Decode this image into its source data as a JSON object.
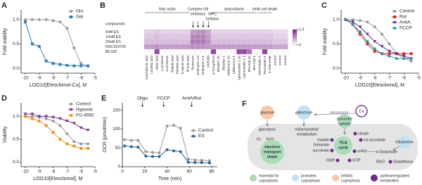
{
  "chart_data": [
    {
      "type": "line",
      "label": "A",
      "xlabel": "LOG10[Elesclomol-Cu], M",
      "ylabel": "Fold viability",
      "x": [
        -10,
        -9.5,
        -9,
        -8.5,
        -8,
        -7.5,
        -7,
        -6.5,
        -6,
        -5.5
      ],
      "xlim": [
        -10.3,
        -5
      ],
      "xticks": [
        -10,
        -9,
        -8,
        -7,
        -6,
        -5
      ],
      "ylim": [
        -0.1,
        1.2
      ],
      "yticks": [
        {
          "value": 0,
          "label": "0.0"
        },
        {
          "value": 0.5,
          "label": "0.5"
        },
        {
          "value": 1,
          "label": "1.0"
        }
      ],
      "legend": "upper right",
      "series": [
        {
          "name": "Glu",
          "color": "#9a9a9a",
          "marker": "circle",
          "values": [
            1.0,
            1.0,
            1.0,
            1.0,
            0.98,
            0.95,
            0.82,
            0.42,
            0.1,
            0.04
          ]
        },
        {
          "name": "Gal",
          "color": "#2f7fc1",
          "marker": "square",
          "values": [
            0.95,
            0.5,
            0.45,
            0.15,
            0.1,
            0.08,
            0.06,
            0.05,
            0.05,
            0.05
          ]
        }
      ]
    },
    {
      "type": "heatmap",
      "label": "B",
      "compounds_label": "compounds:",
      "groups": [
        [
          "fatty acids"
        ],
        [
          "Complex I/III",
          "inhibitors"
        ],
        [
          "MPC",
          "inhibitor"
        ],
        [
          "antioxidants"
        ],
        [
          "inhib cell death"
        ]
      ],
      "rows": [
        "5nM ES",
        "10nM ES",
        "20nM ES",
        "NSC319726",
        "ML162"
      ],
      "columns": [
        "Arachidonic acid",
        "Linoleic acid",
        "Oleic acid",
        "γ-Linolenic",
        "α-Linolenic",
        "Elaidic acid",
        "Palmitic acid",
        "α-Lipoic acid",
        "Erucic acid",
        "Rotenone",
        "Antimycin A 5",
        "Antimycin A 1",
        "UK5099",
        "α-Tocopherol",
        "Ebselen 10",
        "Ebselen 1",
        "Idebenone 10",
        "Idebenone 1",
        "Liproxstatin-1 10",
        "Liproxstatin-1 1",
        "JP4-039 10",
        "JP4-039 1",
        "Necrostatin-1",
        "Ferrostatin-1",
        "Z-VAD-FMK",
        "control",
        "control",
        "control"
      ],
      "values": [
        [
          0.2,
          0.2,
          0.25,
          0.2,
          0.2,
          0.2,
          0.2,
          0.2,
          0.2,
          0.45,
          0.5,
          0.5,
          0.4,
          0.2,
          0.2,
          0.2,
          0.2,
          0.2,
          0.2,
          0.2,
          0.2,
          0.2,
          0.2,
          0.2,
          0.2,
          0.15,
          0.15,
          0.15
        ],
        [
          0.25,
          0.25,
          0.3,
          0.25,
          0.25,
          0.25,
          0.25,
          0.25,
          0.25,
          0.55,
          0.55,
          0.55,
          0.45,
          0.25,
          0.25,
          0.25,
          0.25,
          0.25,
          0.25,
          0.25,
          0.25,
          0.25,
          0.25,
          0.25,
          0.25,
          0.2,
          0.2,
          0.2
        ],
        [
          0.3,
          0.3,
          0.3,
          0.3,
          0.3,
          0.3,
          0.3,
          0.3,
          0.3,
          0.6,
          0.6,
          0.6,
          0.5,
          0.3,
          0.3,
          0.3,
          0.3,
          0.3,
          0.3,
          0.3,
          0.3,
          0.3,
          0.3,
          0.3,
          0.3,
          0.25,
          0.25,
          0.25
        ],
        [
          0.45,
          0.45,
          0.5,
          0.45,
          0.45,
          0.45,
          0.45,
          0.45,
          0.45,
          0.5,
          0.5,
          0.5,
          0.45,
          0.45,
          0.45,
          0.45,
          0.45,
          0.45,
          0.45,
          0.45,
          0.45,
          0.45,
          0.45,
          0.45,
          0.45,
          0.4,
          0.4,
          0.4
        ],
        [
          0,
          0,
          0.8,
          0,
          0,
          0,
          0,
          0,
          0,
          0,
          0,
          0,
          0,
          0.8,
          0,
          0,
          0,
          0,
          0.8,
          0.8,
          0.6,
          0,
          0,
          0.8,
          0,
          0,
          0,
          0
        ]
      ],
      "colors": [
        "#ffffff",
        "#7a1e86"
      ],
      "colorbar_lim": [
        0,
        1
      ],
      "colorbar_ticks": [
        0,
        {
          "value": 1,
          "label": "1.0"
        }
      ]
    },
    {
      "type": "line",
      "label": "C",
      "xlabel": "LOG10[Elesclomol], M",
      "ylabel": "Fold viability",
      "x": [
        -10,
        -9.5,
        -9,
        -8.5,
        -8,
        -7.5,
        -7,
        -6.5,
        -6,
        -5.5
      ],
      "xlim": [
        -10.3,
        -5
      ],
      "xticks": [
        -10,
        -9,
        -8,
        -7,
        -6,
        -5
      ],
      "ylim": [
        -0.1,
        1.2
      ],
      "yticks": [
        {
          "value": 0,
          "label": "0.0"
        },
        {
          "value": 0.5,
          "label": "0.5"
        },
        {
          "value": 1,
          "label": "1.0"
        }
      ],
      "legend": "upper right",
      "series": [
        {
          "name": "Control",
          "color": "#9a9a9a",
          "marker": "circle",
          "values": [
            1.0,
            1.0,
            0.98,
            0.95,
            0.85,
            0.7,
            0.5,
            0.3,
            0.2,
            0.15
          ]
        },
        {
          "name": "Rot",
          "color": "#e0262b",
          "marker": "square",
          "values": [
            1.0,
            0.9,
            0.7,
            0.5,
            0.35,
            0.3,
            0.3,
            0.3,
            0.3,
            0.3
          ]
        },
        {
          "name": "AntiA",
          "color": "#6a2a8e",
          "marker": "triangle",
          "values": [
            1.0,
            0.95,
            0.85,
            0.7,
            0.55,
            0.45,
            0.35,
            0.3,
            0.25,
            0.2
          ]
        },
        {
          "name": "FCCP",
          "color": "#2a9a9a",
          "marker": "circle",
          "values": [
            1.0,
            0.9,
            0.75,
            0.55,
            0.4,
            0.3,
            0.25,
            0.2,
            0.2,
            0.2
          ]
        }
      ]
    },
    {
      "type": "line",
      "label": "D",
      "xlabel": "LOG10[Elesclomol], M",
      "ylabel": "Viability",
      "x": [
        -10,
        -9.5,
        -9,
        -8.5,
        -8,
        -7.5,
        -7,
        -6.5,
        -6,
        -5.5
      ],
      "xlim": [
        -10.3,
        -5
      ],
      "xticks": [
        -10,
        -9,
        -8,
        -7,
        -6,
        -5
      ],
      "ylim": [
        -0.1,
        1.3
      ],
      "yticks": [
        {
          "value": 0,
          "label": "0.0"
        },
        {
          "value": 0.5,
          "label": "0.5"
        },
        {
          "value": 1,
          "label": "1.0"
        }
      ],
      "legend": "upper right",
      "series": [
        {
          "name": "Control",
          "color": "#9a9a9a",
          "marker": "circle",
          "values": [
            1.0,
            1.0,
            0.98,
            0.95,
            0.9,
            0.8,
            0.62,
            0.45,
            0.4,
            0.4
          ]
        },
        {
          "name": "Hypoxia",
          "color": "#7b2f8f",
          "marker": "triangle",
          "values": [
            1.05,
            1.05,
            1.0,
            1.0,
            0.98,
            0.95,
            0.9,
            0.85,
            0.75,
            0.7
          ]
        },
        {
          "name": "FG-4592",
          "color": "#f0961e",
          "marker": "square",
          "values": [
            1.0,
            0.95,
            0.9,
            0.8,
            0.65,
            0.5,
            0.4,
            0.35,
            0.3,
            0.3
          ]
        }
      ]
    },
    {
      "type": "line",
      "label": "E",
      "xlabel": "Time (min)",
      "ylabel": "OCR (pmol/min)",
      "x": [
        2,
        8,
        14,
        21,
        27,
        33,
        40,
        46,
        52,
        59,
        65,
        71,
        78
      ],
      "xlim": [
        0,
        85
      ],
      "xticks": [
        0,
        20,
        40,
        60,
        80
      ],
      "ylim": [
        0,
        170
      ],
      "yticks": [
        0,
        50,
        100,
        150
      ],
      "legend": "center right",
      "annotations": [
        {
          "text": "Oligo",
          "x": 18
        },
        {
          "text": "FCCP",
          "x": 37
        },
        {
          "text": "AntiA/Rot",
          "x": 62
        }
      ],
      "series": [
        {
          "name": "Control",
          "color": "#9a9a9a",
          "marker": "circle",
          "values": [
            72,
            70,
            70,
            40,
            38,
            37,
            108,
            110,
            102,
            20,
            18,
            17,
            16
          ]
        },
        {
          "name": "ES",
          "color": "#2a5f95",
          "marker": "circle",
          "values": [
            55,
            53,
            52,
            28,
            27,
            27,
            45,
            42,
            40,
            12,
            11,
            11,
            10
          ]
        }
      ]
    }
  ],
  "diagram": {
    "label": "F",
    "glucose": "glucose",
    "galactose": "galactose",
    "elesclomol": "elesclomol",
    "cu": "Cu",
    "glycolysis": "glycolysis",
    "mito": [
      "mitochondrial",
      "metabolism"
    ],
    "pyruvate": [
      "pyruvate",
      "uptake"
    ],
    "o2": "O₂",
    "h2o": "H₂O",
    "etc": [
      "electron",
      "transport",
      "chain"
    ],
    "tca": [
      "TCA",
      "cycle"
    ],
    "citrate": "citrate",
    "cis": "cis-aconitate",
    "malate": "malate",
    "fumarate": "fumarate",
    "succinate": "succinate",
    "akg": "α-KG",
    "gdp": "GDP",
    "gtp": "GTP",
    "glutamine": "Glutamine",
    "glutamate": "Glutamate",
    "bso": "BSO",
    "glutathione": "Glutathione",
    "legend": [
      [
        "essential for",
        "cuproptosis"
      ],
      [
        "promotes",
        "cuproptosis"
      ],
      [
        "inhibits",
        "cuproptosis"
      ],
      [
        "up/downregulated",
        "metabolites"
      ]
    ]
  }
}
